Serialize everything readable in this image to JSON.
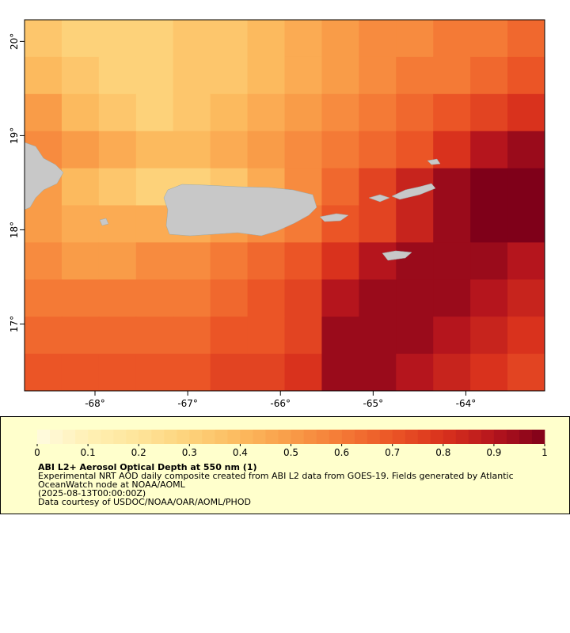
{
  "chart_data": {
    "type": "heatmap",
    "xlim": [
      -68.76,
      -63.15
    ],
    "ylim": [
      16.29,
      20.23
    ],
    "xticks": [
      {
        "value": -68,
        "label": "-68°"
      },
      {
        "value": -67,
        "label": "-67°"
      },
      {
        "value": -66,
        "label": "-66°"
      },
      {
        "value": -65,
        "label": "-65°"
      },
      {
        "value": -64,
        "label": "-64°"
      }
    ],
    "yticks": [
      {
        "value": 17,
        "label": "17°"
      },
      {
        "value": 18,
        "label": "18°"
      },
      {
        "value": 19,
        "label": "19°"
      },
      {
        "value": 20,
        "label": "20°"
      }
    ],
    "values": [
      [
        0.35,
        0.3,
        0.3,
        0.3,
        0.35,
        0.35,
        0.4,
        0.45,
        0.5,
        0.55,
        0.55,
        0.6,
        0.6,
        0.65
      ],
      [
        0.4,
        0.35,
        0.3,
        0.3,
        0.35,
        0.35,
        0.4,
        0.45,
        0.5,
        0.55,
        0.6,
        0.6,
        0.65,
        0.7
      ],
      [
        0.5,
        0.4,
        0.35,
        0.3,
        0.35,
        0.4,
        0.45,
        0.5,
        0.55,
        0.6,
        0.65,
        0.7,
        0.75,
        0.8
      ],
      [
        0.55,
        0.5,
        0.45,
        0.4,
        0.4,
        0.45,
        0.5,
        0.55,
        0.6,
        0.65,
        0.7,
        0.8,
        0.9,
        0.95
      ],
      [
        0.5,
        0.4,
        0.35,
        0.3,
        0.3,
        0.35,
        0.45,
        0.55,
        0.65,
        0.75,
        0.85,
        0.95,
        1,
        1
      ],
      [
        0.5,
        0.45,
        0.45,
        0.45,
        0.45,
        0.5,
        0.55,
        0.6,
        0.7,
        0.75,
        0.85,
        0.95,
        1,
        1
      ],
      [
        0.55,
        0.5,
        0.5,
        0.55,
        0.55,
        0.6,
        0.65,
        0.7,
        0.8,
        0.9,
        0.95,
        0.95,
        0.95,
        0.9
      ],
      [
        0.6,
        0.6,
        0.6,
        0.6,
        0.6,
        0.65,
        0.7,
        0.75,
        0.9,
        0.95,
        0.95,
        0.95,
        0.9,
        0.85
      ],
      [
        0.65,
        0.65,
        0.65,
        0.65,
        0.65,
        0.7,
        0.7,
        0.75,
        0.95,
        0.95,
        0.95,
        0.9,
        0.85,
        0.8
      ],
      [
        0.7,
        0.7,
        0.7,
        0.7,
        0.7,
        0.75,
        0.75,
        0.8,
        0.95,
        0.95,
        0.9,
        0.85,
        0.8,
        0.75
      ]
    ],
    "colorbar": {
      "lim": [
        0,
        1
      ],
      "ticks": [
        0,
        0.1,
        0.2,
        0.3,
        0.4,
        0.5,
        0.6,
        0.7,
        0.8,
        0.9,
        1
      ],
      "colors": [
        "#fffbe0",
        "#fff0b4",
        "#fee49a",
        "#fdd27a",
        "#fcba5e",
        "#f99c48",
        "#f47a36",
        "#eb5526",
        "#d9321d",
        "#b5151d",
        "#7f0019"
      ]
    },
    "title": "ABI L2+ Aerosol Optical Depth at 550 nm (1)",
    "description": [
      "Experimental NRT AOD daily composite created from ABI L2 data from GOES-19. Fields generated by Atlantic",
      "OceanWatch node at NOAA/AOML",
      "(2025-08-13T00:00:00Z)",
      "Data courtesy of USDOC/NOAA/OAR/AOML/PHOD"
    ]
  }
}
